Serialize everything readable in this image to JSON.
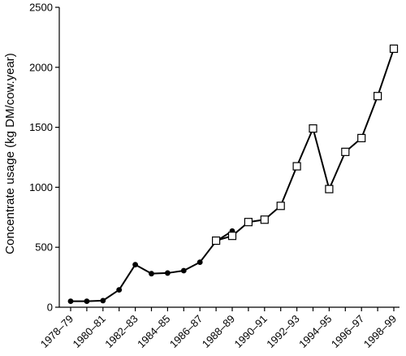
{
  "chart_data": {
    "type": "line",
    "title": "",
    "xlabel": "",
    "ylabel": "Concentrate usage (kg DM/cow.year)",
    "ylim": [
      0,
      2500
    ],
    "yticks": [
      0,
      500,
      1000,
      1500,
      2000,
      2500
    ],
    "categories": [
      "1978–79",
      "1979–80",
      "1980–81",
      "1981–82",
      "1982–83",
      "1983–84",
      "1984–85",
      "1985–86",
      "1986–87",
      "1987–88",
      "1988–89",
      "1989–90",
      "1990–91",
      "1991–92",
      "1992–93",
      "1993–94",
      "1994–95",
      "1995–96",
      "1996–97",
      "1997–98",
      "1998–99"
    ],
    "xtick_labels": [
      "1978–79",
      "1980–81",
      "1982–83",
      "1984–85",
      "1986–87",
      "1988–89",
      "1990–91",
      "1992–93",
      "1994–95",
      "1996–97",
      "1998–99"
    ],
    "grid": false,
    "legend": false,
    "series": [
      {
        "marker": "filled-circle",
        "color": "#000000",
        "x": [
          "1978–79",
          "1979–80",
          "1980–81",
          "1981–82",
          "1982–83",
          "1983–84",
          "1984–85",
          "1985–86",
          "1986–87",
          "1987–88",
          "1988–89"
        ],
        "values": [
          50,
          50,
          55,
          145,
          355,
          280,
          285,
          305,
          375,
          550,
          635
        ]
      },
      {
        "marker": "open-square",
        "color": "#000000",
        "x": [
          "1987–88",
          "1988–89",
          "1989–90",
          "1990–91",
          "1991–92",
          "1992–93",
          "1993–94",
          "1994–95",
          "1995–96",
          "1996–97",
          "1997–98",
          "1998–99"
        ],
        "values": [
          555,
          595,
          710,
          730,
          845,
          1175,
          1490,
          985,
          1295,
          1410,
          1760,
          2155
        ]
      }
    ]
  }
}
